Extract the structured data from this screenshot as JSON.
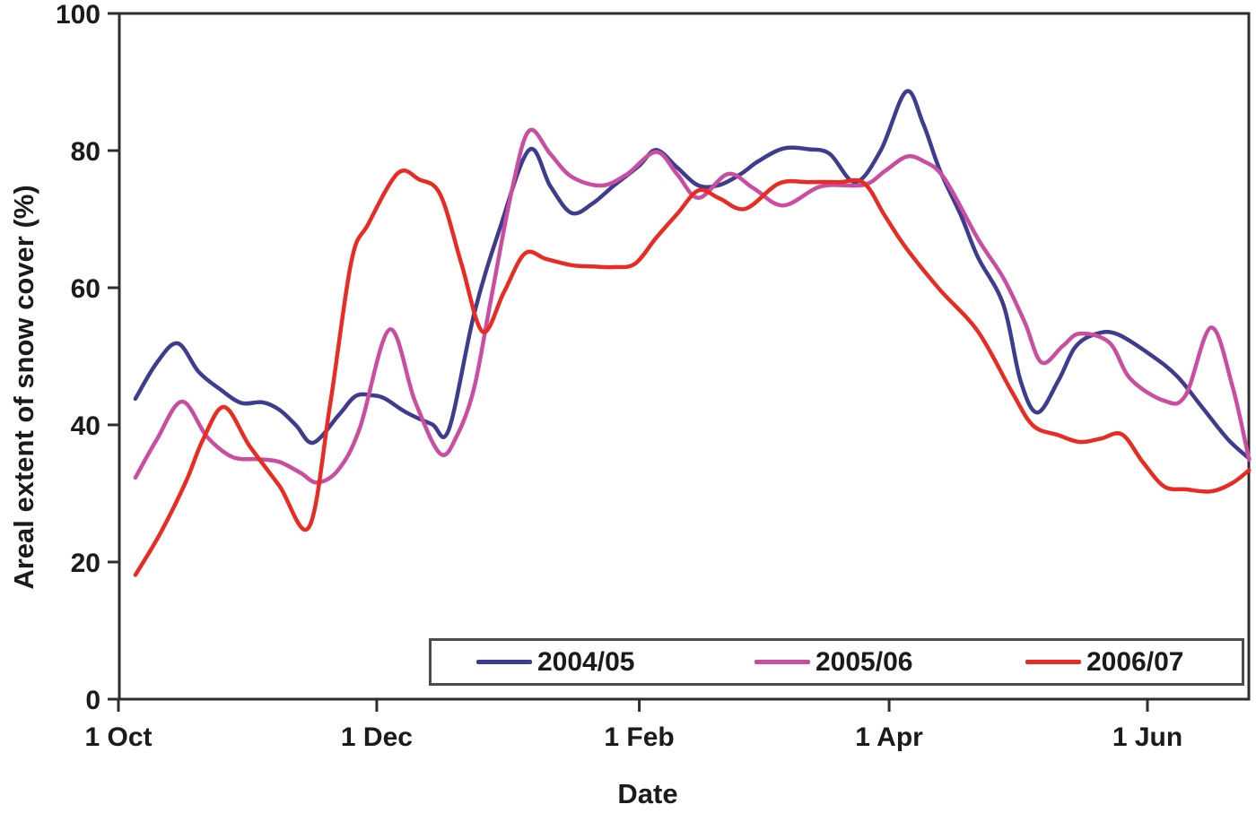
{
  "figure": {
    "kind": "line chart of snow cover seasonal evolution"
  },
  "chart_data": {
    "type": "line",
    "title": "",
    "x_axis": {
      "label": "Date",
      "unit": "days after 1 Oct",
      "range_days": [
        0,
        267
      ],
      "ticks": [
        {
          "label": "1 Oct",
          "day": 0
        },
        {
          "label": "1 Dec",
          "day": 61
        },
        {
          "label": "1 Feb",
          "day": 123
        },
        {
          "label": "1 Apr",
          "day": 182
        },
        {
          "label": "1 Jun",
          "day": 243
        }
      ]
    },
    "y_axis": {
      "label": "Areal extent of snow cover (%)",
      "range": [
        0,
        100
      ],
      "ticks": [
        0,
        20,
        40,
        60,
        80,
        100
      ]
    },
    "grid": "off",
    "legend_position": "bottom-center boxed",
    "series": [
      {
        "name": "2004/05",
        "color": "#3d3c8f",
        "points": [
          [
            4,
            43.8
          ],
          [
            9,
            49.0
          ],
          [
            14,
            51.9
          ],
          [
            19,
            47.7
          ],
          [
            24,
            45.2
          ],
          [
            29,
            43.2
          ],
          [
            34,
            43.3
          ],
          [
            38,
            42.2
          ],
          [
            42,
            39.9
          ],
          [
            46,
            37.4
          ],
          [
            52,
            41.4
          ],
          [
            56,
            44.2
          ],
          [
            60,
            44.3
          ],
          [
            63,
            43.8
          ],
          [
            68,
            41.8
          ],
          [
            74,
            40.1
          ],
          [
            78,
            39.3
          ],
          [
            84,
            56.2
          ],
          [
            90,
            68.5
          ],
          [
            97,
            80.1
          ],
          [
            102,
            74.8
          ],
          [
            107,
            70.9
          ],
          [
            112,
            72.3
          ],
          [
            117,
            74.9
          ],
          [
            123,
            77.8
          ],
          [
            127,
            80.1
          ],
          [
            132,
            77.5
          ],
          [
            137,
            74.9
          ],
          [
            142,
            75.0
          ],
          [
            147,
            76.6
          ],
          [
            151,
            78.4
          ],
          [
            157,
            80.3
          ],
          [
            163,
            80.2
          ],
          [
            168,
            79.5
          ],
          [
            174,
            75.4
          ],
          [
            180,
            80.0
          ],
          [
            186,
            88.6
          ],
          [
            190,
            84.0
          ],
          [
            194,
            77.1
          ],
          [
            199,
            70.5
          ],
          [
            203,
            64.4
          ],
          [
            209,
            57.5
          ],
          [
            213,
            46.5
          ],
          [
            217,
            41.8
          ],
          [
            222,
            46.5
          ],
          [
            226,
            51.4
          ],
          [
            231,
            53.3
          ],
          [
            236,
            53.2
          ],
          [
            244,
            50.1
          ],
          [
            250,
            47.1
          ],
          [
            256,
            42.5
          ],
          [
            262,
            37.9
          ],
          [
            267,
            35.1
          ]
        ]
      },
      {
        "name": "2005/06",
        "color": "#c94da1",
        "points": [
          [
            4,
            32.3
          ],
          [
            9,
            37.8
          ],
          [
            15,
            43.4
          ],
          [
            21,
            38.2
          ],
          [
            27,
            35.3
          ],
          [
            33,
            35.0
          ],
          [
            38,
            34.6
          ],
          [
            43,
            33.0
          ],
          [
            47,
            31.6
          ],
          [
            52,
            33.5
          ],
          [
            57,
            39.5
          ],
          [
            64,
            53.9
          ],
          [
            70,
            43.5
          ],
          [
            76,
            35.8
          ],
          [
            80,
            38.5
          ],
          [
            84,
            45.4
          ],
          [
            88,
            58.4
          ],
          [
            93,
            74.5
          ],
          [
            97,
            82.9
          ],
          [
            102,
            79.5
          ],
          [
            107,
            76.2
          ],
          [
            114,
            74.9
          ],
          [
            120,
            76.5
          ],
          [
            127,
            79.8
          ],
          [
            132,
            76.5
          ],
          [
            137,
            73.1
          ],
          [
            144,
            76.6
          ],
          [
            150,
            74.5
          ],
          [
            157,
            72.0
          ],
          [
            166,
            74.8
          ],
          [
            176,
            75.0
          ],
          [
            181,
            77.0
          ],
          [
            186,
            79.1
          ],
          [
            190,
            78.5
          ],
          [
            195,
            76.0
          ],
          [
            203,
            67.1
          ],
          [
            209,
            61.4
          ],
          [
            214,
            55.0
          ],
          [
            218,
            49.1
          ],
          [
            223,
            51.5
          ],
          [
            227,
            53.3
          ],
          [
            234,
            52.0
          ],
          [
            239,
            46.7
          ],
          [
            247,
            43.5
          ],
          [
            252,
            44.3
          ],
          [
            258,
            54.2
          ],
          [
            263,
            45.8
          ],
          [
            267,
            34.9
          ]
        ]
      },
      {
        "name": "2006/07",
        "color": "#e82c23",
        "points": [
          [
            4,
            18.1
          ],
          [
            10,
            24.3
          ],
          [
            16,
            31.8
          ],
          [
            20,
            37.9
          ],
          [
            25,
            42.6
          ],
          [
            31,
            36.9
          ],
          [
            38,
            31.1
          ],
          [
            45,
            25.1
          ],
          [
            50,
            43.0
          ],
          [
            55,
            63.8
          ],
          [
            59,
            69.3
          ],
          [
            66,
            76.7
          ],
          [
            71,
            75.8
          ],
          [
            76,
            73.6
          ],
          [
            81,
            63.5
          ],
          [
            86,
            53.6
          ],
          [
            91,
            59.3
          ],
          [
            96,
            65.0
          ],
          [
            101,
            64.2
          ],
          [
            107,
            63.3
          ],
          [
            112,
            63.1
          ],
          [
            117,
            63.0
          ],
          [
            122,
            63.5
          ],
          [
            127,
            67.3
          ],
          [
            132,
            70.8
          ],
          [
            137,
            74.2
          ],
          [
            142,
            73.0
          ],
          [
            148,
            71.5
          ],
          [
            156,
            75.2
          ],
          [
            163,
            75.4
          ],
          [
            170,
            75.4
          ],
          [
            176,
            75.3
          ],
          [
            181,
            70.5
          ],
          [
            186,
            65.8
          ],
          [
            194,
            59.7
          ],
          [
            203,
            53.6
          ],
          [
            211,
            44.8
          ],
          [
            216,
            39.9
          ],
          [
            222,
            38.5
          ],
          [
            227,
            37.5
          ],
          [
            232,
            38.0
          ],
          [
            237,
            38.6
          ],
          [
            242,
            34.5
          ],
          [
            247,
            31.0
          ],
          [
            252,
            30.6
          ],
          [
            258,
            30.3
          ],
          [
            263,
            31.5
          ],
          [
            267,
            33.4
          ]
        ]
      }
    ]
  }
}
